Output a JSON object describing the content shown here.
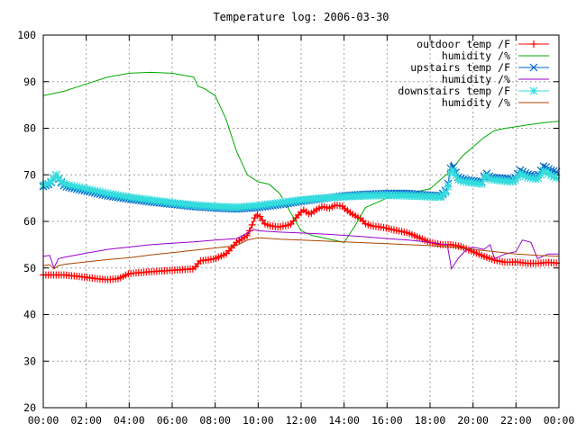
{
  "chart_data": {
    "type": "line",
    "title": "Temperature log: 2006-03-30",
    "xlabel": "",
    "ylabel": "",
    "xlim": [
      0,
      24
    ],
    "ylim": [
      20,
      100
    ],
    "x_tick_labels": [
      "00:00",
      "02:00",
      "04:00",
      "06:00",
      "08:00",
      "10:00",
      "12:00",
      "14:00",
      "16:00",
      "18:00",
      "20:00",
      "22:00",
      "00:00"
    ],
    "y_tick_labels": [
      "20",
      "30",
      "40",
      "50",
      "60",
      "70",
      "80",
      "90",
      "100"
    ],
    "grid": true,
    "legend_position": "top-right",
    "series": [
      {
        "name": "outdoor temp /F",
        "color": "#ff0000",
        "marker": "plus",
        "x": [
          0,
          1,
          2,
          2.5,
          3,
          3.5,
          4,
          5,
          6,
          7,
          7.3,
          8,
          8.5,
          9,
          9.5,
          9.7,
          9.9,
          10.1,
          10.3,
          10.6,
          11,
          11.5,
          11.8,
          12.1,
          12.4,
          12.7,
          13,
          13.3,
          13.6,
          13.9,
          14.1,
          14.4,
          14.8,
          15,
          15.3,
          15.7,
          16,
          16.5,
          17,
          17.5,
          18,
          18.5,
          19,
          19.5,
          20,
          20.5,
          21,
          21.5,
          22,
          22.5,
          23,
          23.5,
          24
        ],
        "y": [
          48.5,
          48.5,
          48,
          47.7,
          47.5,
          47.7,
          48.8,
          49.2,
          49.5,
          49.8,
          51.5,
          52,
          53,
          55.5,
          57,
          59,
          61.5,
          61,
          59.5,
          59,
          58.8,
          59.3,
          61,
          62.5,
          61.5,
          62.5,
          63.2,
          62.8,
          63.5,
          63.3,
          62.5,
          61.5,
          60.5,
          59.5,
          59,
          58.8,
          58.5,
          58,
          57.5,
          56.5,
          55.5,
          55,
          55,
          54.5,
          53.5,
          52.5,
          51.7,
          51.2,
          51.3,
          51,
          51,
          51.2,
          51
        ]
      },
      {
        "name": "humidity /%",
        "color": "#00aa00",
        "marker": "none",
        "x": [
          0,
          0.5,
          1,
          2,
          3,
          4,
          5,
          6,
          7,
          7.2,
          7.5,
          8,
          8.5,
          9,
          9.5,
          10,
          10.5,
          11,
          11.5,
          12,
          12.5,
          13,
          13.5,
          14,
          14.5,
          15,
          15.5,
          16,
          16.5,
          17,
          17.5,
          18,
          18.5,
          19,
          19.5,
          20,
          20.5,
          21,
          21.5,
          22,
          22.5,
          23,
          23.5,
          24
        ],
        "y": [
          87,
          87.5,
          88,
          89.5,
          91,
          91.8,
          92,
          91.8,
          91,
          89,
          88.5,
          87,
          82,
          75,
          70,
          68.5,
          68,
          66,
          62,
          58,
          57,
          56.5,
          56,
          55.5,
          59,
          63,
          64,
          65,
          65.5,
          65.5,
          66.5,
          67,
          69,
          71,
          74,
          76,
          78,
          79.5,
          80,
          80.3,
          80.7,
          81,
          81.3,
          81.5
        ]
      },
      {
        "name": "upstairs temp /F",
        "color": "#0066cc",
        "marker": "cross",
        "x": [
          0,
          0.3,
          0.6,
          0.8,
          1,
          2,
          3,
          4,
          5,
          6,
          7,
          8,
          9,
          10,
          11,
          12,
          13,
          14,
          15,
          16,
          17,
          18,
          18.5,
          18.8,
          19,
          19.3,
          19.6,
          20,
          20.4,
          20.6,
          20.8,
          21.2,
          21.6,
          21.9,
          22.2,
          22.5,
          22.8,
          23,
          23.3,
          23.6,
          24
        ],
        "y": [
          67.5,
          68,
          70,
          68.5,
          67.5,
          66.5,
          65.5,
          64.8,
          64.2,
          63.7,
          63.2,
          62.9,
          62.7,
          63,
          63.6,
          64.3,
          64.9,
          65.5,
          65.8,
          66,
          66,
          65.6,
          65.5,
          67,
          72.5,
          69.5,
          69,
          68.7,
          68.5,
          70.5,
          69.5,
          69.3,
          69.2,
          69,
          71,
          70.2,
          69.9,
          69.7,
          72,
          71,
          70.5
        ]
      },
      {
        "name": "humidity /%",
        "color": "#9900cc",
        "marker": "none",
        "x": [
          0,
          0.3,
          0.5,
          0.7,
          1,
          2,
          3,
          4,
          5,
          6,
          7,
          8,
          9,
          9.5,
          9.8,
          10,
          11,
          12,
          13,
          14,
          15,
          16,
          17,
          18,
          18.8,
          19,
          19.3,
          19.7,
          20,
          20.5,
          20.8,
          21,
          21.5,
          22,
          22.3,
          22.7,
          23,
          23.5,
          24
        ],
        "y": [
          52.5,
          52.7,
          50,
          52,
          52.3,
          53.2,
          54,
          54.5,
          55,
          55.3,
          55.6,
          56,
          56.3,
          57.5,
          58.3,
          58,
          57.7,
          57.5,
          57.3,
          57,
          56.7,
          56.3,
          56,
          55.5,
          55,
          49.8,
          52,
          54,
          54.5,
          54,
          55,
          52,
          53,
          53.5,
          56,
          55.5,
          52,
          53,
          53
        ]
      },
      {
        "name": "downstairs temp /F",
        "color": "#33dddd",
        "marker": "star",
        "x": [
          0,
          0.3,
          0.6,
          0.8,
          1,
          2,
          3,
          4,
          5,
          6,
          7,
          8,
          9,
          10,
          11,
          12,
          13,
          14,
          15,
          16,
          17,
          18,
          18.5,
          18.8,
          19,
          19.3,
          19.6,
          20,
          20.4,
          20.6,
          20.8,
          21.2,
          21.6,
          21.9,
          22.2,
          22.5,
          22.8,
          23,
          23.3,
          23.6,
          24
        ],
        "y": [
          67.8,
          68.2,
          70,
          68.7,
          68,
          67,
          66,
          65.2,
          64.6,
          64,
          63.5,
          63.2,
          63,
          63.4,
          64,
          64.6,
          65,
          65.3,
          65.5,
          65.6,
          65.5,
          65.3,
          65.2,
          66.5,
          71.5,
          69,
          68.5,
          68.3,
          68,
          70,
          69,
          68.8,
          68.6,
          68.5,
          70.3,
          69.5,
          69.2,
          69,
          71,
          70,
          69
        ]
      },
      {
        "name": "humidity /%",
        "color": "#aa4400",
        "marker": "none",
        "x": [
          0,
          0.3,
          0.5,
          0.7,
          1,
          2,
          3,
          4,
          5,
          6,
          7,
          8,
          9,
          9.5,
          10,
          11,
          12,
          13,
          14,
          15,
          16,
          17,
          18,
          19,
          20,
          21,
          22,
          23,
          24
        ],
        "y": [
          50.5,
          50.7,
          49.8,
          50.5,
          50.8,
          51.3,
          51.8,
          52.2,
          52.8,
          53.3,
          53.8,
          54.3,
          54.8,
          56,
          56.5,
          56.2,
          56,
          55.8,
          55.6,
          55.4,
          55.2,
          55,
          54.8,
          54.5,
          54,
          53.5,
          53,
          52.7,
          52.5
        ]
      }
    ]
  }
}
